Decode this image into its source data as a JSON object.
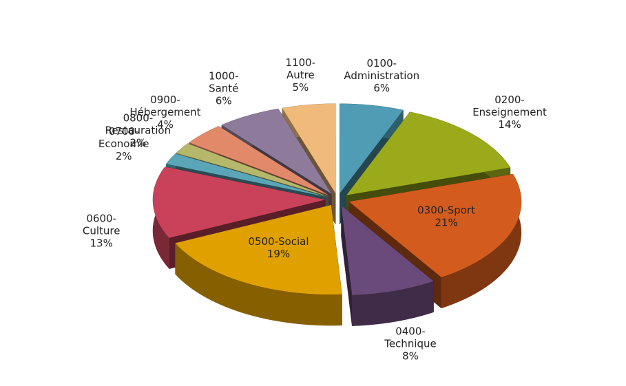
{
  "chart_data": {
    "type": "pie",
    "categories": [
      "0100-Administration",
      "0200-Enseignement",
      "0300-Sport",
      "0400-Technique",
      "0500-Social",
      "0600-Culture",
      "0700-Economie",
      "0800-Restauration",
      "0900-Hébergement",
      "1000-Santé",
      "1100-Autre"
    ],
    "values": [
      6,
      14,
      21,
      8,
      19,
      13,
      2,
      2,
      4,
      6,
      5
    ],
    "value_labels": [
      "6%",
      "14%",
      "21%",
      "8%",
      "19%",
      "13%",
      "2%",
      "2%",
      "4%",
      "6%",
      "5%"
    ],
    "colors": [
      "#4f9cb4",
      "#9aaa1a",
      "#d35b1d",
      "#6a4a7a",
      "#e0a000",
      "#c9425a",
      "#5aa6b8",
      "#b5b86a",
      "#e2896a",
      "#8e7a9a",
      "#f0bb7a"
    ]
  }
}
